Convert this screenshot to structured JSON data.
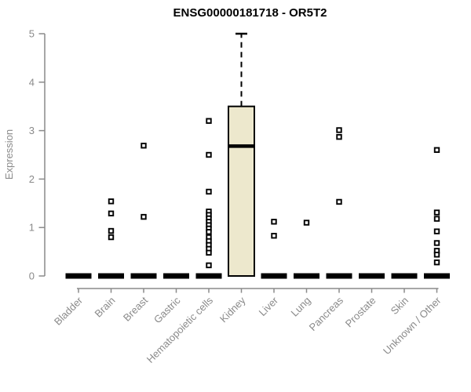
{
  "title": "ENSG00000181718 - OR5T2",
  "y_axis": {
    "label": "Expression"
  },
  "chart_data": {
    "type": "boxplot",
    "title": "ENSG00000181718 - OR5T2",
    "xlabel": "",
    "ylabel": "Expression",
    "ylim": [
      0,
      5
    ],
    "yticks": [
      0,
      1,
      2,
      3,
      4,
      5
    ],
    "grid": false,
    "legend": "none",
    "colors": {
      "box_fill": "#EDE8CD",
      "box_stroke": "#000000",
      "outlier": "#000000",
      "axis": "#8a8a8a",
      "tick_label": "#8a8a8a",
      "title": "#000000"
    },
    "categories": [
      "Bladder",
      "Brain",
      "Breast",
      "Gastric",
      "Hematopoietic cells",
      "Kidney",
      "Liver",
      "Lung",
      "Pancreas",
      "Prostate",
      "Skin",
      "Unknown / Other"
    ],
    "boxes": [
      {
        "category": "Bladder",
        "whisker_low": 0,
        "q1": 0,
        "median": 0,
        "q3": 0,
        "whisker_high": 0,
        "outliers": []
      },
      {
        "category": "Brain",
        "whisker_low": 0,
        "q1": 0,
        "median": 0,
        "q3": 0,
        "whisker_high": 0,
        "outliers": [
          1.54,
          1.29,
          0.93,
          0.8
        ]
      },
      {
        "category": "Breast",
        "whisker_low": 0,
        "q1": 0,
        "median": 0,
        "q3": 0,
        "whisker_high": 0,
        "outliers": [
          2.69,
          1.22
        ]
      },
      {
        "category": "Gastric",
        "whisker_low": 0,
        "q1": 0,
        "median": 0,
        "q3": 0,
        "whisker_high": 0,
        "outliers": []
      },
      {
        "category": "Hematopoietic cells",
        "whisker_low": 0,
        "q1": 0,
        "median": 0,
        "q3": 0,
        "whisker_high": 0,
        "outliers": [
          3.2,
          2.5,
          1.74,
          1.33,
          1.26,
          1.19,
          1.12,
          1.05,
          0.98,
          0.91,
          0.8,
          0.72,
          0.64,
          0.56,
          0.48,
          0.22
        ]
      },
      {
        "category": "Kidney",
        "whisker_low": 0,
        "q1": 0,
        "median": 2.68,
        "q3": 3.5,
        "whisker_high": 5.0,
        "outliers": []
      },
      {
        "category": "Liver",
        "whisker_low": 0,
        "q1": 0,
        "median": 0,
        "q3": 0,
        "whisker_high": 0,
        "outliers": [
          1.12,
          0.83
        ]
      },
      {
        "category": "Lung",
        "whisker_low": 0,
        "q1": 0,
        "median": 0,
        "q3": 0,
        "whisker_high": 0,
        "outliers": [
          1.1
        ]
      },
      {
        "category": "Pancreas",
        "whisker_low": 0,
        "q1": 0,
        "median": 0,
        "q3": 0,
        "whisker_high": 0,
        "outliers": [
          3.01,
          2.87,
          1.53
        ]
      },
      {
        "category": "Prostate",
        "whisker_low": 0,
        "q1": 0,
        "median": 0,
        "q3": 0,
        "whisker_high": 0,
        "outliers": []
      },
      {
        "category": "Skin",
        "whisker_low": 0,
        "q1": 0,
        "median": 0,
        "q3": 0,
        "whisker_high": 0,
        "outliers": []
      },
      {
        "category": "Unknown / Other",
        "whisker_low": 0,
        "q1": 0,
        "median": 0,
        "q3": 0,
        "whisker_high": 0,
        "outliers": [
          2.6,
          1.31,
          1.18,
          0.92,
          0.68,
          0.52,
          0.44,
          0.28
        ]
      }
    ]
  }
}
